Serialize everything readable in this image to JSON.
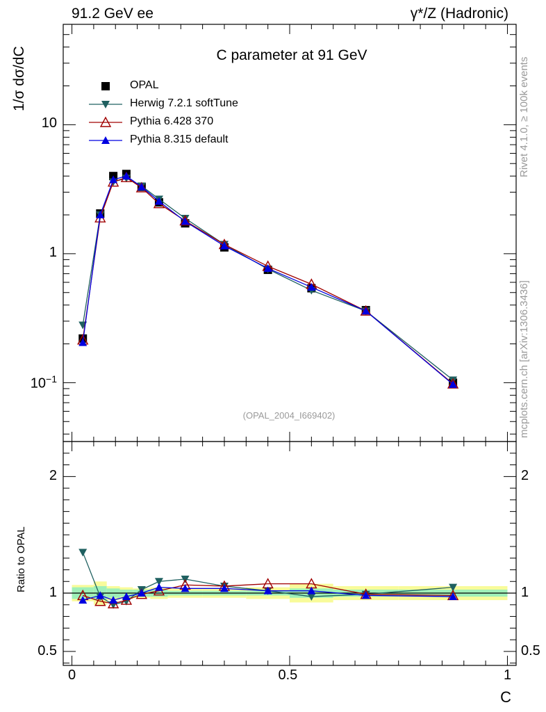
{
  "header": {
    "left": "91.2 GeV ee",
    "right": "γ*/Z (Hadronic)"
  },
  "side_labels": {
    "rivet": "Rivet 4.1.0, ≥ 100k events",
    "source": "mcplots.cern.ch [arXiv:1306.3436]"
  },
  "chart_data": {
    "type": "line",
    "title": "C parameter at 91 GeV",
    "xlabel": "C",
    "ylabel": "1/σ  dσ/dC",
    "ratio_ylabel": "Ratio to OPAL",
    "reference": "(OPAL_2004_I669402)",
    "xlim": [
      -0.02,
      1.02
    ],
    "ylim": [
      0.035,
      60
    ],
    "yscale": "log",
    "ratio_ylim": [
      0.38,
      2.3
    ],
    "x_ticks": [
      {
        "v": 0,
        "label": "0"
      },
      {
        "v": 0.5,
        "label": "0.5"
      },
      {
        "v": 1,
        "label": "1"
      }
    ],
    "y_ticks": [
      {
        "v": 10,
        "label": "10",
        "sup": ""
      },
      {
        "v": 1,
        "label": "1",
        "sup": ""
      },
      {
        "v": 0.1,
        "label": "10",
        "sup": "−1"
      }
    ],
    "ratio_ticks": [
      {
        "v": 2,
        "label": "2"
      },
      {
        "v": 1,
        "label": "1"
      },
      {
        "v": 0.5,
        "label": "0.5"
      }
    ],
    "x": [
      0.025,
      0.065,
      0.095,
      0.125,
      0.16,
      0.2,
      0.26,
      0.35,
      0.45,
      0.55,
      0.675,
      0.875
    ],
    "x_bins": [
      [
        0.0,
        0.05
      ],
      [
        0.05,
        0.08
      ],
      [
        0.08,
        0.11
      ],
      [
        0.11,
        0.14
      ],
      [
        0.14,
        0.18
      ],
      [
        0.18,
        0.22
      ],
      [
        0.22,
        0.3
      ],
      [
        0.3,
        0.4
      ],
      [
        0.4,
        0.5
      ],
      [
        0.5,
        0.6
      ],
      [
        0.6,
        0.75
      ],
      [
        0.75,
        1.0
      ]
    ],
    "data": {
      "name": "OPAL",
      "values": [
        0.22,
        2.05,
        4.0,
        4.15,
        3.3,
        2.5,
        1.72,
        1.12,
        0.75,
        0.54,
        0.365,
        0.1
      ],
      "band_inner": [
        0.05,
        0.06,
        0.04,
        0.03,
        0.03,
        0.03,
        0.02,
        0.02,
        0.02,
        0.04,
        0.03,
        0.03
      ],
      "band_outer": [
        0.07,
        0.1,
        0.06,
        0.05,
        0.04,
        0.05,
        0.04,
        0.04,
        0.05,
        0.08,
        0.06,
        0.06
      ]
    },
    "series": [
      {
        "name": "Herwig 7.2.1 softTune",
        "color": "#1f6060",
        "marker": "triangle-down",
        "values": [
          0.28,
          2.0,
          3.6,
          3.85,
          3.35,
          2.65,
          1.88,
          1.18,
          0.76,
          0.52,
          0.36,
          0.105
        ],
        "ratio": [
          1.35,
          0.97,
          0.9,
          0.93,
          1.03,
          1.1,
          1.12,
          1.06,
          1.02,
          0.97,
          0.99,
          1.05
        ]
      },
      {
        "name": "Pythia 6.428 370",
        "color": "#a00000",
        "marker": "triangle-up-open",
        "values": [
          0.215,
          1.9,
          3.6,
          3.9,
          3.25,
          2.45,
          1.8,
          1.18,
          0.8,
          0.58,
          0.36,
          0.098
        ],
        "ratio": [
          0.98,
          0.93,
          0.91,
          0.94,
          0.99,
          1.02,
          1.07,
          1.06,
          1.08,
          1.08,
          0.99,
          0.98
        ]
      },
      {
        "name": "Pythia 8.315 default",
        "color": "#0000e0",
        "marker": "triangle-up",
        "values": [
          0.205,
          2.0,
          3.75,
          4.0,
          3.3,
          2.55,
          1.78,
          1.15,
          0.77,
          0.55,
          0.36,
          0.097
        ],
        "ratio": [
          0.94,
          0.98,
          0.94,
          0.97,
          1.0,
          1.05,
          1.04,
          1.04,
          1.02,
          1.02,
          0.98,
          0.97
        ]
      }
    ],
    "legend_position": "top-left"
  },
  "colors": {
    "band_inner": "#9ff0b8",
    "band_outer": "#f8fb9a",
    "axis": "#000000"
  }
}
